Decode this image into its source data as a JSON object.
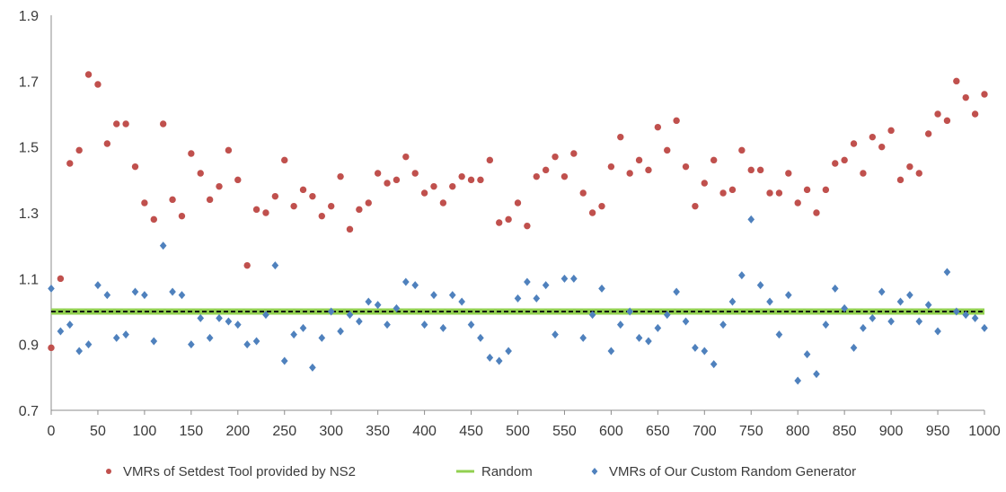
{
  "chart_data": {
    "type": "scatter",
    "xlim": [
      0,
      1000
    ],
    "ylim": [
      0.7,
      1.9
    ],
    "x_ticks": [
      0,
      50,
      100,
      150,
      200,
      250,
      300,
      350,
      400,
      450,
      500,
      550,
      600,
      650,
      700,
      750,
      800,
      850,
      900,
      950,
      1000
    ],
    "y_ticks": [
      0.7,
      0.9,
      1.1,
      1.3,
      1.5,
      1.7,
      1.9
    ],
    "y_tick_labels": [
      "0.7",
      "0.9",
      "1.1",
      "1.3",
      "1.5",
      "1.7",
      "1.9"
    ],
    "grid": false,
    "legend_position": "bottom",
    "series": [
      {
        "name": "VMRs of Setdest Tool provided by NS2",
        "color": "#c0504d",
        "marker": "circle",
        "x": [
          0,
          10,
          20,
          30,
          40,
          50,
          60,
          70,
          80,
          90,
          100,
          110,
          120,
          130,
          140,
          150,
          160,
          170,
          180,
          190,
          200,
          210,
          220,
          230,
          240,
          250,
          260,
          270,
          280,
          290,
          300,
          310,
          320,
          330,
          340,
          350,
          360,
          370,
          380,
          390,
          400,
          410,
          420,
          430,
          440,
          450,
          460,
          470,
          480,
          490,
          500,
          510,
          520,
          530,
          540,
          550,
          560,
          570,
          580,
          590,
          600,
          610,
          620,
          630,
          640,
          650,
          660,
          670,
          680,
          690,
          700,
          710,
          720,
          730,
          740,
          750,
          760,
          770,
          780,
          790,
          800,
          810,
          820,
          830,
          840,
          850,
          860,
          870,
          880,
          890,
          900,
          910,
          920,
          930,
          940,
          950,
          960,
          970,
          980,
          990,
          1000
        ],
        "y": [
          0.89,
          1.1,
          1.45,
          1.49,
          1.72,
          1.69,
          1.51,
          1.57,
          1.57,
          1.44,
          1.33,
          1.28,
          1.57,
          1.34,
          1.29,
          1.48,
          1.42,
          1.34,
          1.38,
          1.49,
          1.4,
          1.14,
          1.31,
          1.3,
          1.35,
          1.46,
          1.32,
          1.37,
          1.35,
          1.29,
          1.32,
          1.41,
          1.25,
          1.31,
          1.33,
          1.42,
          1.39,
          1.4,
          1.47,
          1.42,
          1.36,
          1.38,
          1.33,
          1.38,
          1.41,
          1.4,
          1.4,
          1.46,
          1.27,
          1.28,
          1.33,
          1.26,
          1.41,
          1.43,
          1.47,
          1.41,
          1.48,
          1.36,
          1.3,
          1.32,
          1.44,
          1.53,
          1.42,
          1.46,
          1.43,
          1.56,
          1.49,
          1.58,
          1.44,
          1.32,
          1.39,
          1.46,
          1.36,
          1.37,
          1.49,
          1.43,
          1.43,
          1.36,
          1.36,
          1.42,
          1.33,
          1.37,
          1.3,
          1.37,
          1.45,
          1.46,
          1.51,
          1.42,
          1.53,
          1.5,
          1.55,
          1.4,
          1.44,
          1.42,
          1.54,
          1.6,
          1.58,
          1.7,
          1.65,
          1.6,
          1.66
        ]
      },
      {
        "name": "Random",
        "color": "#92d050",
        "marker": "line",
        "x": [
          0,
          1000
        ],
        "y": [
          1.0,
          1.0
        ]
      },
      {
        "name": "VMRs of Our Custom Random Generator",
        "color": "#4f81bd",
        "marker": "diamond",
        "x": [
          0,
          10,
          20,
          30,
          40,
          50,
          60,
          70,
          80,
          90,
          100,
          110,
          120,
          130,
          140,
          150,
          160,
          170,
          180,
          190,
          200,
          210,
          220,
          230,
          240,
          250,
          260,
          270,
          280,
          290,
          300,
          310,
          320,
          330,
          340,
          350,
          360,
          370,
          380,
          390,
          400,
          410,
          420,
          430,
          440,
          450,
          460,
          470,
          480,
          490,
          500,
          510,
          520,
          530,
          540,
          550,
          560,
          570,
          580,
          590,
          600,
          610,
          620,
          630,
          640,
          650,
          660,
          670,
          680,
          690,
          700,
          710,
          720,
          730,
          740,
          750,
          760,
          770,
          780,
          790,
          800,
          810,
          820,
          830,
          840,
          850,
          860,
          870,
          880,
          890,
          900,
          910,
          920,
          930,
          940,
          950,
          960,
          970,
          980,
          990,
          1000
        ],
        "y": [
          1.07,
          0.94,
          0.96,
          0.88,
          0.9,
          1.08,
          1.05,
          0.92,
          0.93,
          1.06,
          1.05,
          0.91,
          1.2,
          1.06,
          1.05,
          0.9,
          0.98,
          0.92,
          0.98,
          0.97,
          0.96,
          0.9,
          0.91,
          0.99,
          1.14,
          0.85,
          0.93,
          0.95,
          0.83,
          0.92,
          1.0,
          0.94,
          0.99,
          0.97,
          1.03,
          1.02,
          0.96,
          1.01,
          1.09,
          1.08,
          0.96,
          1.05,
          0.95,
          1.05,
          1.03,
          0.96,
          0.92,
          0.86,
          0.85,
          0.88,
          1.04,
          1.09,
          1.04,
          1.08,
          0.93,
          1.1,
          1.1,
          0.92,
          0.99,
          1.07,
          0.88,
          0.96,
          1.0,
          0.92,
          0.91,
          0.95,
          0.99,
          1.06,
          0.97,
          0.89,
          0.88,
          0.84,
          0.96,
          1.03,
          1.11,
          1.28,
          1.08,
          1.03,
          0.93,
          1.05,
          0.79,
          0.87,
          0.81,
          0.96,
          1.07,
          1.01,
          0.89,
          0.95,
          0.98,
          1.06,
          0.97,
          1.03,
          1.05,
          0.97,
          1.02,
          0.94,
          1.12,
          1.0,
          0.99,
          0.98,
          0.95
        ]
      }
    ]
  }
}
